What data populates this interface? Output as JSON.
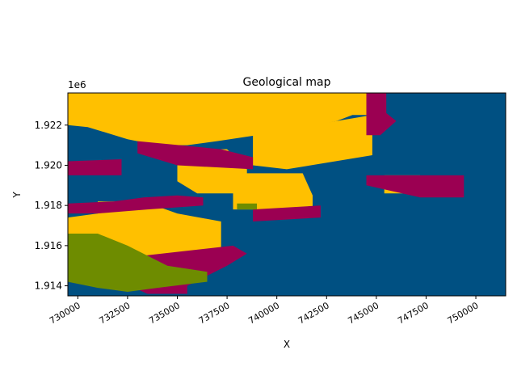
{
  "chart_data": {
    "type": "heatmap",
    "title": "Geological map",
    "xlabel": "X",
    "ylabel": "Y",
    "y_offset_label": "1e6",
    "xlim": [
      729500,
      751500
    ],
    "ylim": [
      1.9135,
      1.9236
    ],
    "x_ticks": [
      730000,
      732500,
      735000,
      737500,
      740000,
      742500,
      745000,
      747500,
      750000
    ],
    "x_tick_labels": [
      "730000",
      "732500",
      "735000",
      "737500",
      "740000",
      "742500",
      "745000",
      "747500",
      "750000"
    ],
    "y_ticks": [
      1.914,
      1.916,
      1.918,
      1.92,
      1.922
    ],
    "y_tick_labels": [
      "1.914",
      "1.916",
      "1.918",
      "1.920",
      "1.922"
    ],
    "grid": false,
    "legend": "none",
    "units_colors": {
      "background": "#005082",
      "yellow_unit": "#ffc000",
      "magenta_unit": "#9b0052",
      "green_unit": "#6e8c00"
    },
    "regions": [
      {
        "unit": "yellow_unit",
        "polygon": [
          [
            729500,
            1.9236
          ],
          [
            745000,
            1.9236
          ],
          [
            745000,
            1.9225
          ],
          [
            743800,
            1.9225
          ],
          [
            743000,
            1.9222
          ],
          [
            741000,
            1.9218
          ],
          [
            739000,
            1.9215
          ],
          [
            737000,
            1.9212
          ],
          [
            735500,
            1.921
          ],
          [
            734000,
            1.921
          ],
          [
            732500,
            1.9213
          ],
          [
            730500,
            1.9219
          ],
          [
            729500,
            1.922
          ]
        ]
      },
      {
        "unit": "yellow_unit",
        "polygon": [
          [
            735000,
            1.9208
          ],
          [
            737500,
            1.9208
          ],
          [
            738500,
            1.9198
          ],
          [
            738500,
            1.9186
          ],
          [
            736000,
            1.9186
          ],
          [
            735000,
            1.9192
          ]
        ]
      },
      {
        "unit": "yellow_unit",
        "polygon": [
          [
            738800,
            1.9215
          ],
          [
            744800,
            1.9225
          ],
          [
            744800,
            1.9205
          ],
          [
            740500,
            1.9198
          ],
          [
            738800,
            1.92
          ]
        ]
      },
      {
        "unit": "yellow_unit",
        "polygon": [
          [
            737800,
            1.9196
          ],
          [
            741300,
            1.9196
          ],
          [
            741800,
            1.9185
          ],
          [
            741800,
            1.9178
          ],
          [
            737800,
            1.9178
          ]
        ]
      },
      {
        "unit": "yellow_unit",
        "polygon": [
          [
            731000,
            1.9182
          ],
          [
            733300,
            1.9182
          ],
          [
            735000,
            1.9176
          ],
          [
            737200,
            1.9172
          ],
          [
            737200,
            1.9158
          ],
          [
            736200,
            1.9148
          ],
          [
            735000,
            1.9142
          ],
          [
            733500,
            1.914
          ],
          [
            732200,
            1.9142
          ],
          [
            731500,
            1.915
          ],
          [
            731500,
            1.916
          ],
          [
            729500,
            1.9163
          ],
          [
            729500,
            1.9174
          ],
          [
            731000,
            1.9176
          ]
        ]
      },
      {
        "unit": "yellow_unit",
        "polygon": [
          [
            745400,
            1.9195
          ],
          [
            747200,
            1.9195
          ],
          [
            747200,
            1.9186
          ],
          [
            745400,
            1.9186
          ]
        ]
      },
      {
        "unit": "magenta_unit",
        "polygon": [
          [
            744500,
            1.9236
          ],
          [
            745500,
            1.9236
          ],
          [
            745500,
            1.9226
          ],
          [
            746000,
            1.9222
          ],
          [
            745200,
            1.9215
          ],
          [
            744500,
            1.9215
          ]
        ]
      },
      {
        "unit": "magenta_unit",
        "polygon": [
          [
            733000,
            1.9212
          ],
          [
            737200,
            1.9208
          ],
          [
            738800,
            1.9204
          ],
          [
            738800,
            1.9198
          ],
          [
            735000,
            1.92
          ],
          [
            733000,
            1.9206
          ]
        ]
      },
      {
        "unit": "magenta_unit",
        "polygon": [
          [
            729500,
            1.9202
          ],
          [
            732200,
            1.9203
          ],
          [
            732200,
            1.9195
          ],
          [
            729500,
            1.9195
          ]
        ]
      },
      {
        "unit": "magenta_unit",
        "polygon": [
          [
            731500,
            1.9153
          ],
          [
            737800,
            1.916
          ],
          [
            738500,
            1.9156
          ],
          [
            737500,
            1.915
          ],
          [
            735500,
            1.914
          ],
          [
            735500,
            1.9136
          ],
          [
            733500,
            1.9136
          ],
          [
            731500,
            1.9145
          ]
        ]
      },
      {
        "unit": "magenta_unit",
        "polygon": [
          [
            729500,
            1.9181
          ],
          [
            731800,
            1.9182
          ],
          [
            733300,
            1.9184
          ],
          [
            735000,
            1.9185
          ],
          [
            736300,
            1.9184
          ],
          [
            736300,
            1.918
          ],
          [
            733500,
            1.9178
          ],
          [
            731000,
            1.9176
          ],
          [
            729500,
            1.9176
          ]
        ]
      },
      {
        "unit": "magenta_unit",
        "polygon": [
          [
            744500,
            1.9195
          ],
          [
            749400,
            1.9195
          ],
          [
            749400,
            1.9184
          ],
          [
            747200,
            1.9184
          ],
          [
            745400,
            1.9188
          ],
          [
            744500,
            1.919
          ]
        ]
      },
      {
        "unit": "magenta_unit",
        "polygon": [
          [
            738800,
            1.9178
          ],
          [
            742200,
            1.918
          ],
          [
            742200,
            1.9174
          ],
          [
            738800,
            1.9172
          ]
        ]
      },
      {
        "unit": "green_unit",
        "polygon": [
          [
            729500,
            1.9166
          ],
          [
            731000,
            1.9166
          ],
          [
            732500,
            1.916
          ],
          [
            734500,
            1.915
          ],
          [
            736500,
            1.9147
          ],
          [
            736500,
            1.9142
          ],
          [
            734000,
            1.9139
          ],
          [
            732500,
            1.9137
          ],
          [
            731000,
            1.9139
          ],
          [
            729500,
            1.9142
          ]
        ]
      },
      {
        "unit": "green_unit",
        "polygon": [
          [
            738000,
            1.9181
          ],
          [
            739000,
            1.9181
          ],
          [
            739000,
            1.9178
          ],
          [
            738000,
            1.9178
          ]
        ]
      }
    ]
  }
}
